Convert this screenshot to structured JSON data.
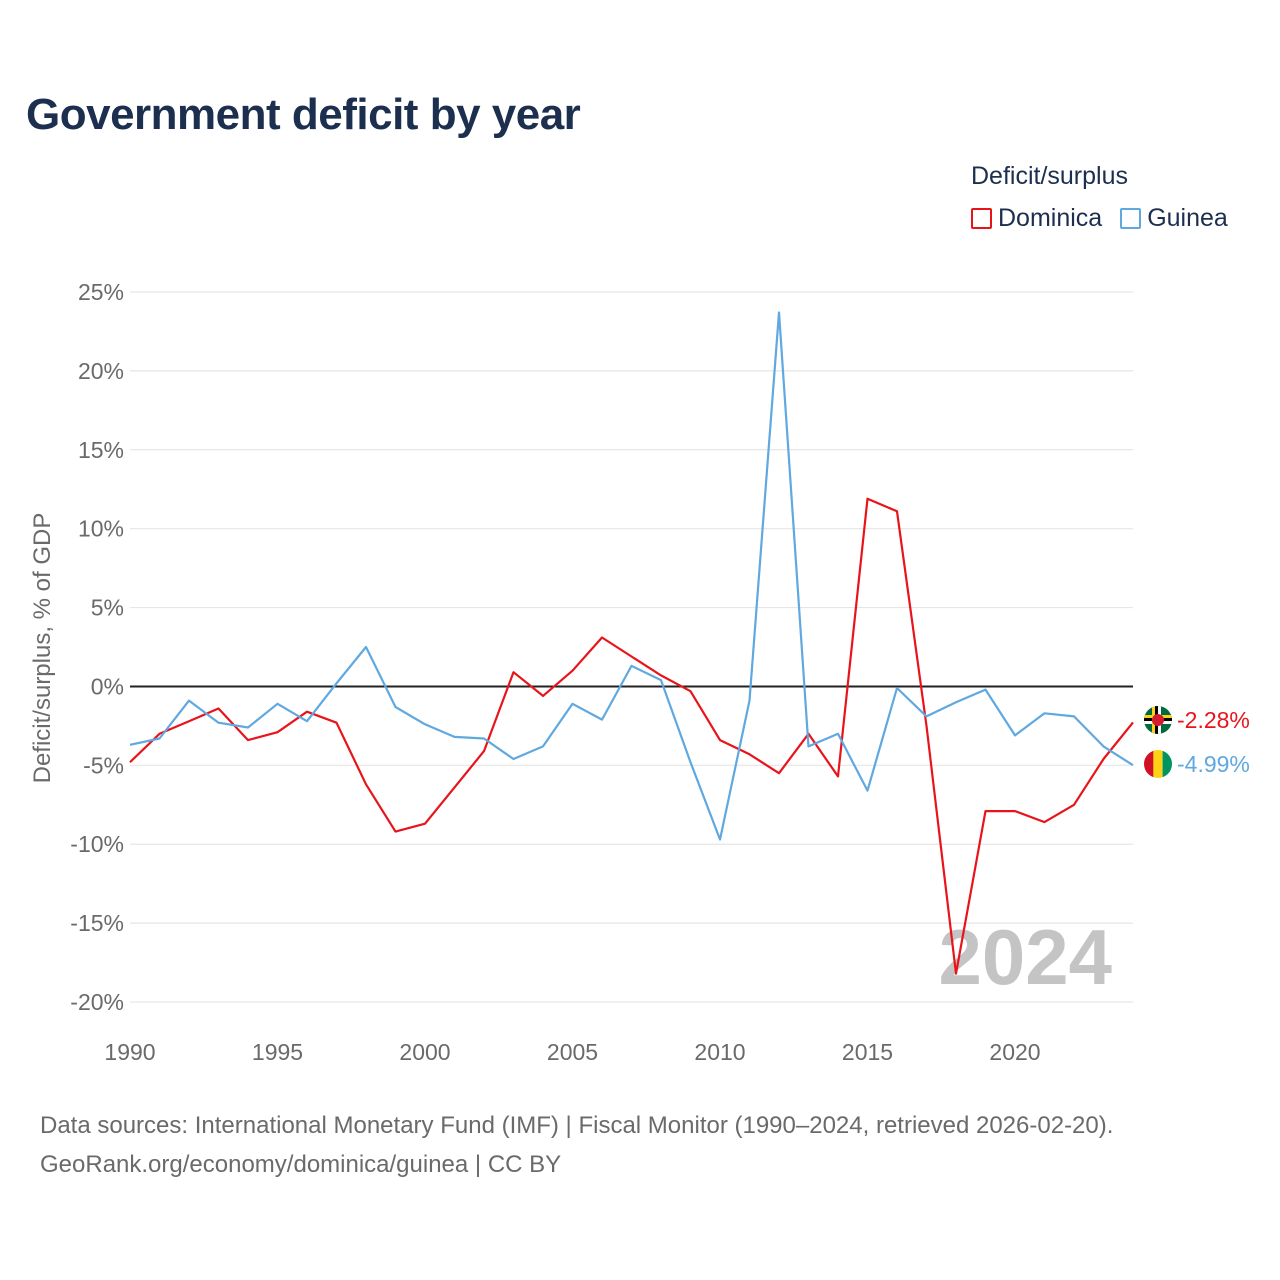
{
  "title": "Government deficit by year",
  "legend": {
    "title": "Deficit/surplus",
    "items": [
      {
        "label": "Dominica",
        "color": "#e8141a"
      },
      {
        "label": "Guinea",
        "color": "#5fa8e0"
      }
    ]
  },
  "chart_data": {
    "type": "line",
    "title": "Government deficit by year",
    "xlabel": "",
    "ylabel": "Deficit/surplus, % of GDP",
    "xlim": [
      1990,
      2024
    ],
    "ylim": [
      -20,
      25
    ],
    "yticks": [
      25,
      20,
      15,
      10,
      5,
      0,
      -5,
      -10,
      -15,
      -20
    ],
    "ytick_labels": [
      "25%",
      "20%",
      "15%",
      "10%",
      "5%",
      "0%",
      "-5%",
      "-10%",
      "-15%",
      "-20%"
    ],
    "xticks": [
      1990,
      1995,
      2000,
      2005,
      2010,
      2015,
      2020
    ],
    "xtick_labels": [
      "1990",
      "1995",
      "2000",
      "2005",
      "2010",
      "2015",
      "2020"
    ],
    "x": [
      1990,
      1991,
      1992,
      1993,
      1994,
      1995,
      1996,
      1997,
      1998,
      1999,
      2000,
      2001,
      2002,
      2003,
      2004,
      2005,
      2006,
      2007,
      2008,
      2009,
      2010,
      2011,
      2012,
      2013,
      2014,
      2015,
      2016,
      2017,
      2018,
      2019,
      2020,
      2021,
      2022,
      2023,
      2024
    ],
    "series": [
      {
        "name": "Dominica",
        "color": "#e8141a",
        "values": [
          -4.8,
          -3.0,
          -2.2,
          -1.4,
          -3.4,
          -2.9,
          -1.6,
          -2.3,
          -6.2,
          -9.2,
          -8.7,
          -6.4,
          -4.1,
          0.9,
          -0.6,
          1.0,
          3.1,
          1.9,
          0.7,
          -0.3,
          -3.4,
          -4.3,
          -5.5,
          -3.0,
          -5.7,
          11.9,
          11.1,
          -2.5,
          -18.2,
          -7.9,
          -7.9,
          -8.6,
          -7.5,
          -4.6,
          -2.28
        ]
      },
      {
        "name": "Guinea",
        "color": "#5fa8e0",
        "values": [
          -3.7,
          -3.3,
          -0.9,
          -2.3,
          -2.6,
          -1.1,
          -2.2,
          0.2,
          2.5,
          -1.3,
          -2.4,
          -3.2,
          -3.3,
          -4.6,
          -3.8,
          -1.1,
          -2.1,
          1.3,
          0.4,
          -4.8,
          -9.7,
          -0.9,
          23.7,
          -3.8,
          -3.0,
          -6.6,
          -0.1,
          -1.9,
          -1.0,
          -0.2,
          -3.1,
          -1.7,
          -1.9,
          -3.8,
          -4.99
        ]
      }
    ],
    "end_labels": [
      "-2.28%",
      "-4.99%"
    ],
    "current_year": "2024",
    "grid": true,
    "legend_position": "top-right"
  },
  "source": {
    "line1": "Data sources: International Monetary Fund (IMF) | Fiscal Monitor (1990–2024, retrieved 2026-02-20).",
    "line2": "GeoRank.org/economy/dominica/guinea | CC BY"
  }
}
